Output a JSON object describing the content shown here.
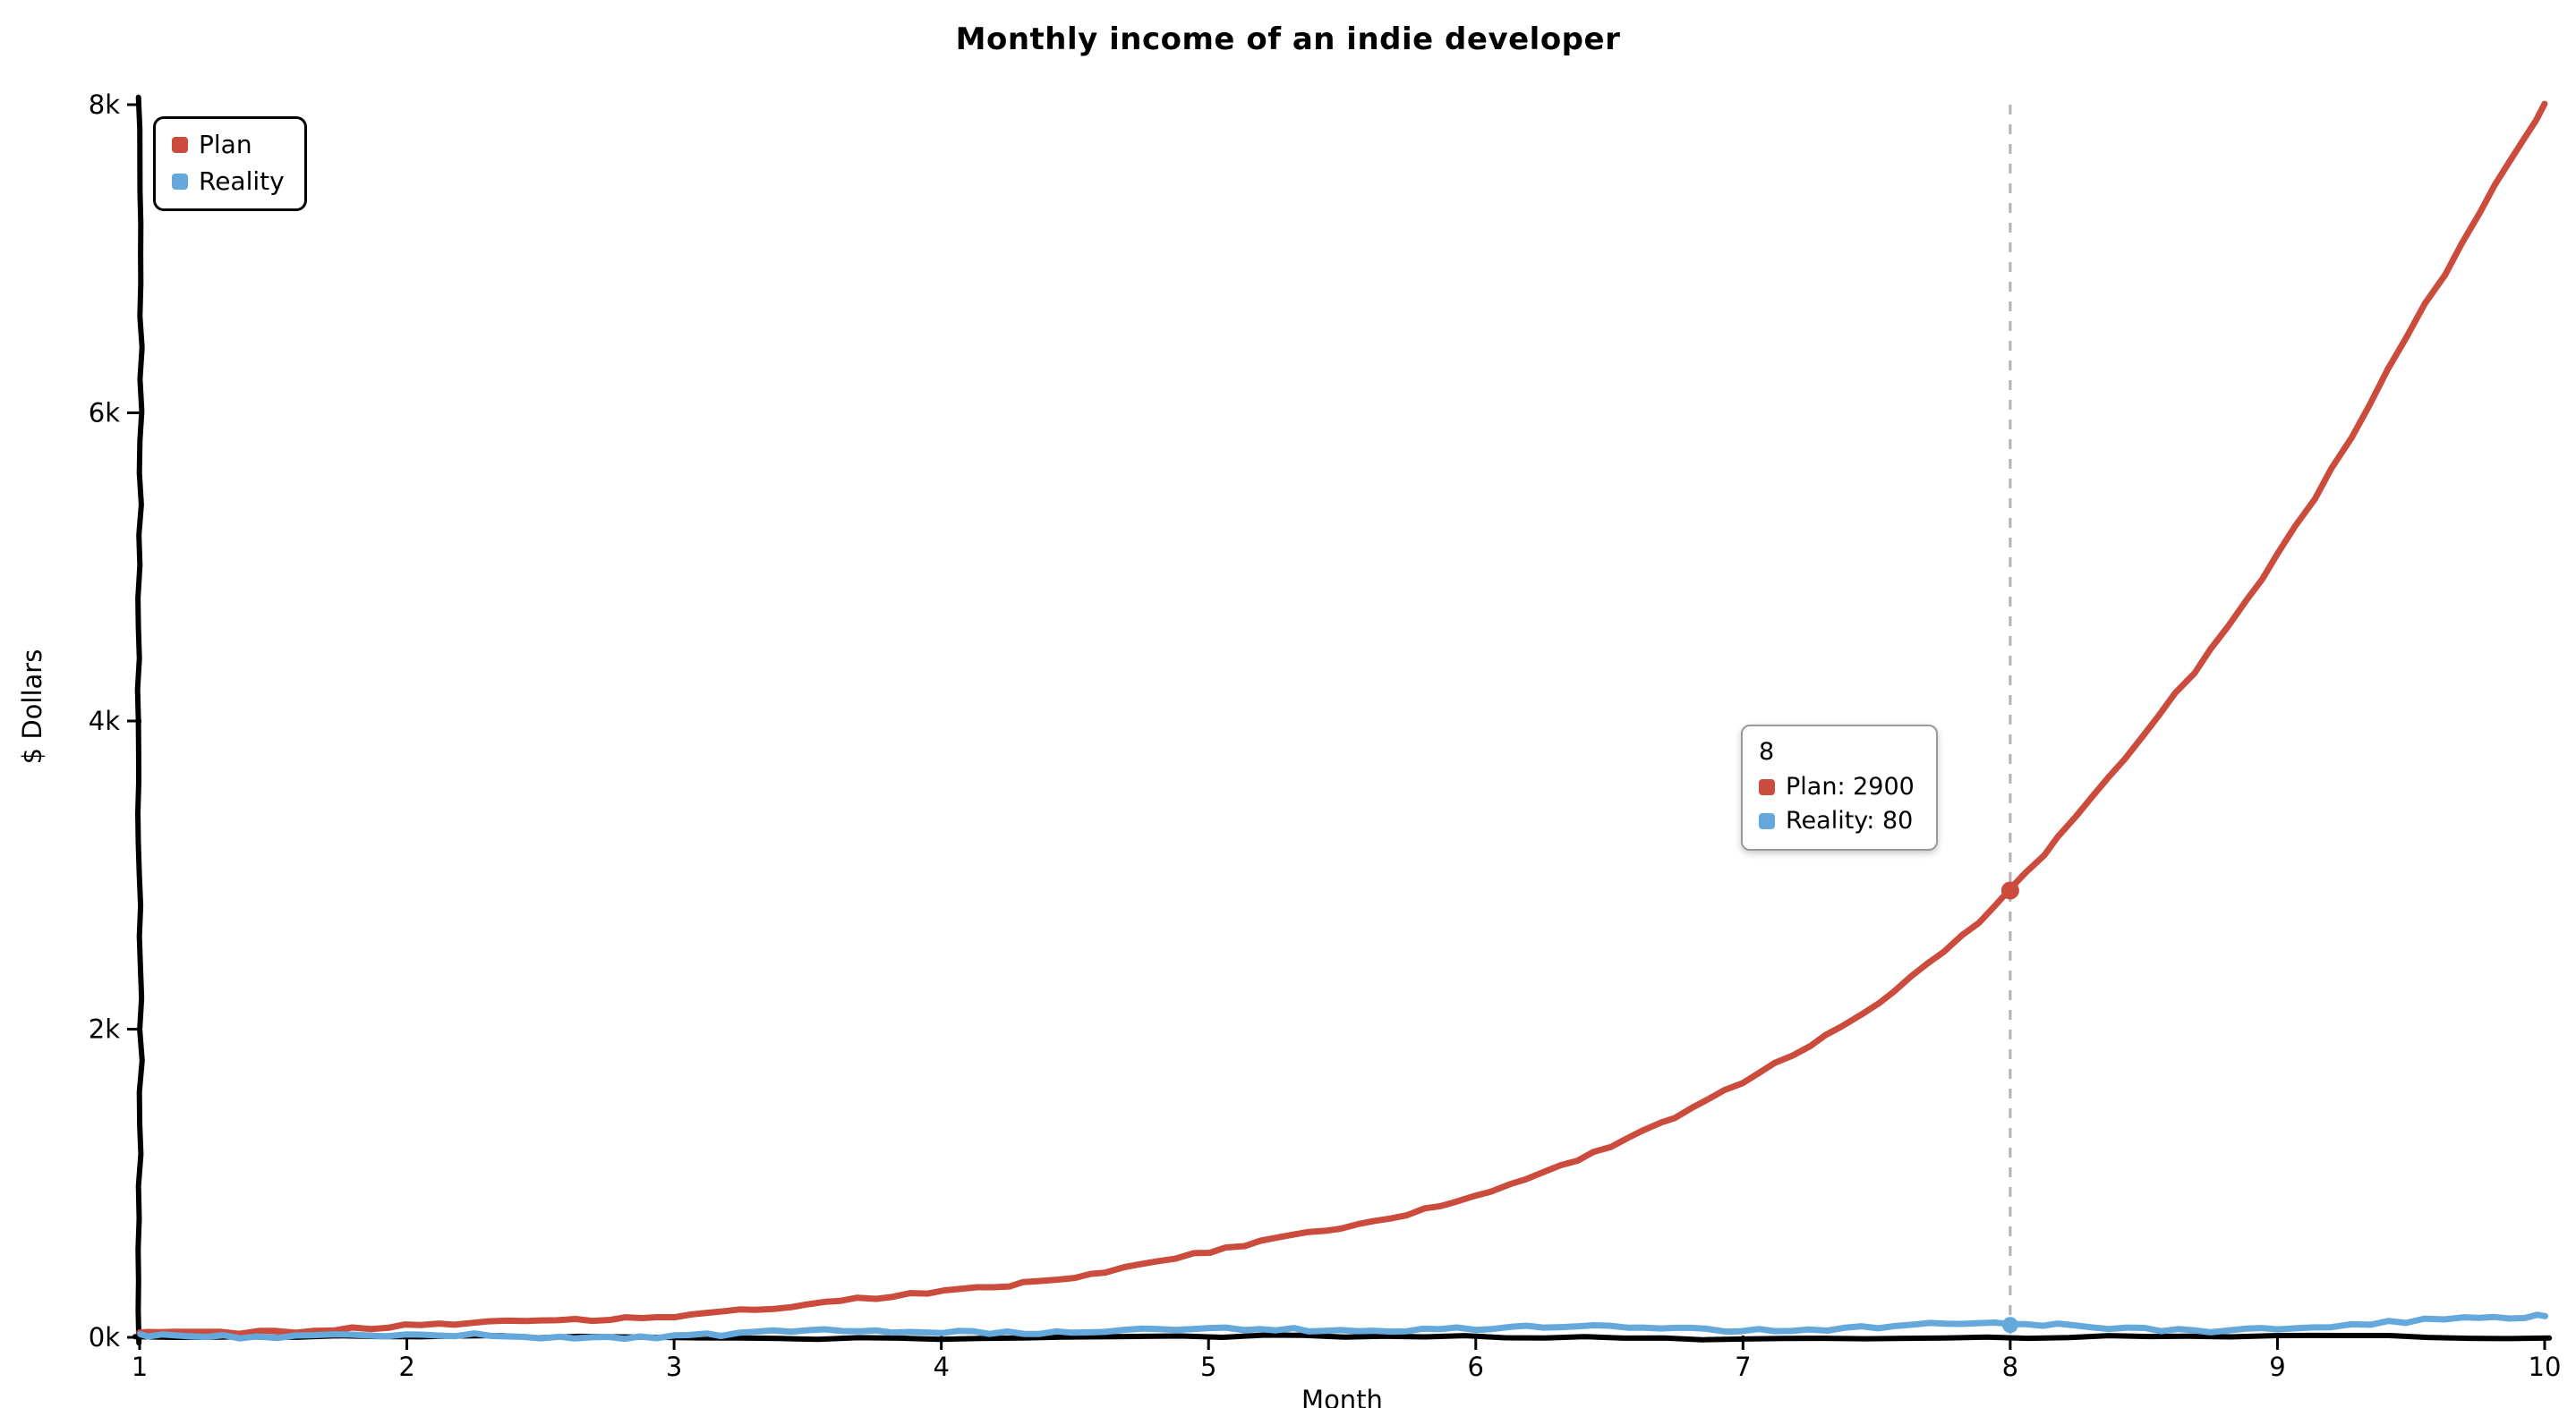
{
  "chart_data": {
    "type": "line",
    "title": "Monthly income of an indie developer",
    "xlabel": "Month",
    "ylabel": "$ Dollars",
    "x": [
      1,
      2,
      3,
      4,
      5,
      6,
      7,
      8,
      9,
      10
    ],
    "series": [
      {
        "name": "Plan",
        "color": "#cb4b3c",
        "values": [
          30,
          70,
          150,
          290,
          550,
          930,
          1650,
          2900,
          5100,
          8000
        ]
      },
      {
        "name": "Reality",
        "color": "#64a8dc",
        "values": [
          20,
          5,
          15,
          40,
          45,
          60,
          55,
          80,
          55,
          150
        ]
      }
    ],
    "xlim": [
      1,
      10
    ],
    "ylim": [
      0,
      8000
    ],
    "x_ticks": [
      1,
      2,
      3,
      4,
      5,
      6,
      7,
      8,
      9,
      10
    ],
    "y_ticks": {
      "values": [
        0,
        2000,
        4000,
        6000,
        8000
      ],
      "labels": [
        "0k",
        "2k",
        "4k",
        "6k",
        "8k"
      ]
    },
    "grid": false,
    "legend_position": "top-left",
    "hover_point": {
      "x": 8,
      "values": [
        2900,
        80
      ]
    },
    "hover_line_color": "#b3b3b3",
    "axis_color": "#000000"
  },
  "tooltip": {
    "x_value": "8",
    "rows": [
      {
        "series": "Plan",
        "text": "Plan: 2900"
      },
      {
        "series": "Reality",
        "text": "Reality: 80"
      }
    ]
  }
}
